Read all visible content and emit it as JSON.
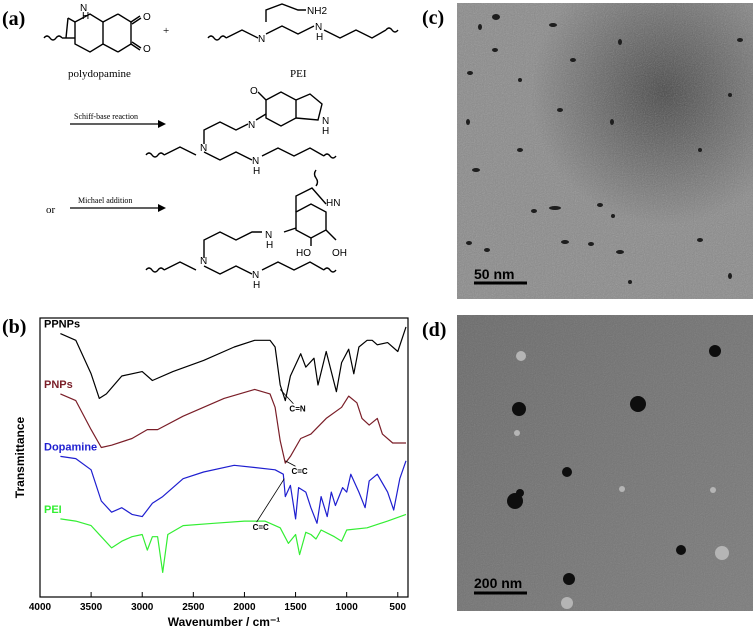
{
  "panels": {
    "a": "(a)",
    "b": "(b)",
    "c": "(c)",
    "d": "(d)"
  },
  "scheme": {
    "plus": "+",
    "polydopamine": "polydopamine",
    "pei": "PEI",
    "nh2": "NH2",
    "nh": "N\nH",
    "schiff": "Schiff-base reaction",
    "or": "or",
    "michael": "Michael addition",
    "ho": "HO",
    "oh": "OH",
    "hn": "HN"
  },
  "micrographs": {
    "c_scale": "50 nm",
    "d_scale": "200 nm"
  },
  "chart_data": {
    "type": "line",
    "xlabel": "Wavenumber / cm⁻¹",
    "ylabel": "Transmittance",
    "xlim": [
      4000,
      400
    ],
    "x_ticks": [
      4000,
      3500,
      3000,
      2500,
      2000,
      1500,
      1000,
      500
    ],
    "grid": false,
    "series": [
      {
        "name": "PPNPs",
        "color": "#000000",
        "points": [
          [
            3800,
            0.93
          ],
          [
            3650,
            0.9
          ],
          [
            3500,
            0.75
          ],
          [
            3420,
            0.64
          ],
          [
            3350,
            0.66
          ],
          [
            3200,
            0.74
          ],
          [
            3000,
            0.76
          ],
          [
            2900,
            0.72
          ],
          [
            2700,
            0.76
          ],
          [
            2400,
            0.81
          ],
          [
            2100,
            0.87
          ],
          [
            1900,
            0.9
          ],
          [
            1750,
            0.9
          ],
          [
            1700,
            0.87
          ],
          [
            1650,
            0.7
          ],
          [
            1600,
            0.63
          ],
          [
            1550,
            0.74
          ],
          [
            1450,
            0.84
          ],
          [
            1400,
            0.78
          ],
          [
            1320,
            0.82
          ],
          [
            1280,
            0.7
          ],
          [
            1200,
            0.85
          ],
          [
            1100,
            0.67
          ],
          [
            1050,
            0.8
          ],
          [
            980,
            0.86
          ],
          [
            930,
            0.75
          ],
          [
            880,
            0.87
          ],
          [
            800,
            0.9
          ],
          [
            750,
            0.9
          ],
          [
            700,
            0.88
          ],
          [
            600,
            0.89
          ],
          [
            500,
            0.85
          ],
          [
            420,
            0.96
          ]
        ]
      },
      {
        "name": "PNPs",
        "color": "#7a1e28",
        "points": [
          [
            3800,
            0.66
          ],
          [
            3650,
            0.63
          ],
          [
            3500,
            0.5
          ],
          [
            3400,
            0.42
          ],
          [
            3300,
            0.43
          ],
          [
            3100,
            0.46
          ],
          [
            2950,
            0.5
          ],
          [
            2850,
            0.5
          ],
          [
            2600,
            0.56
          ],
          [
            2200,
            0.64
          ],
          [
            1900,
            0.68
          ],
          [
            1750,
            0.66
          ],
          [
            1700,
            0.6
          ],
          [
            1650,
            0.45
          ],
          [
            1600,
            0.35
          ],
          [
            1550,
            0.38
          ],
          [
            1450,
            0.46
          ],
          [
            1350,
            0.48
          ],
          [
            1200,
            0.55
          ],
          [
            1050,
            0.6
          ],
          [
            980,
            0.65
          ],
          [
            900,
            0.62
          ],
          [
            850,
            0.55
          ],
          [
            780,
            0.52
          ],
          [
            700,
            0.55
          ],
          [
            650,
            0.48
          ],
          [
            550,
            0.44
          ],
          [
            420,
            0.44
          ]
        ]
      },
      {
        "name": "Dopamine",
        "color": "#1f1fd0",
        "points": [
          [
            3800,
            0.38
          ],
          [
            3650,
            0.37
          ],
          [
            3500,
            0.32
          ],
          [
            3400,
            0.18
          ],
          [
            3300,
            0.13
          ],
          [
            3200,
            0.15
          ],
          [
            3100,
            0.12
          ],
          [
            3000,
            0.11
          ],
          [
            2900,
            0.17
          ],
          [
            2800,
            0.2
          ],
          [
            2600,
            0.28
          ],
          [
            2400,
            0.31
          ],
          [
            2100,
            0.34
          ],
          [
            1900,
            0.33
          ],
          [
            1700,
            0.32
          ],
          [
            1620,
            0.3
          ],
          [
            1600,
            0.2
          ],
          [
            1550,
            0.25
          ],
          [
            1500,
            0.1
          ],
          [
            1470,
            0.24
          ],
          [
            1400,
            0.22
          ],
          [
            1350,
            0.15
          ],
          [
            1290,
            0.08
          ],
          [
            1250,
            0.2
          ],
          [
            1190,
            0.11
          ],
          [
            1150,
            0.22
          ],
          [
            1110,
            0.16
          ],
          [
            1040,
            0.24
          ],
          [
            1000,
            0.22
          ],
          [
            960,
            0.3
          ],
          [
            880,
            0.22
          ],
          [
            820,
            0.15
          ],
          [
            780,
            0.27
          ],
          [
            700,
            0.3
          ],
          [
            600,
            0.22
          ],
          [
            540,
            0.14
          ],
          [
            480,
            0.28
          ],
          [
            420,
            0.36
          ]
        ]
      },
      {
        "name": "PEI",
        "color": "#33ee33",
        "points": [
          [
            3800,
            0.1
          ],
          [
            3650,
            0.09
          ],
          [
            3500,
            0.07
          ],
          [
            3400,
            0.02
          ],
          [
            3300,
            -0.03
          ],
          [
            3200,
            0.0
          ],
          [
            3100,
            0.02
          ],
          [
            3000,
            0.03
          ],
          [
            2950,
            -0.04
          ],
          [
            2900,
            0.02
          ],
          [
            2850,
            0.02
          ],
          [
            2800,
            -0.14
          ],
          [
            2750,
            0.03
          ],
          [
            2600,
            0.07
          ],
          [
            2300,
            0.08
          ],
          [
            2000,
            0.09
          ],
          [
            1800,
            0.09
          ],
          [
            1650,
            0.06
          ],
          [
            1570,
            -0.01
          ],
          [
            1500,
            0.03
          ],
          [
            1460,
            -0.06
          ],
          [
            1400,
            0.04
          ],
          [
            1350,
            0.03
          ],
          [
            1300,
            0.01
          ],
          [
            1250,
            0.05
          ],
          [
            1120,
            0.02
          ],
          [
            1050,
            0.0
          ],
          [
            1000,
            0.05
          ],
          [
            800,
            0.06
          ],
          [
            600,
            0.09
          ],
          [
            420,
            0.12
          ]
        ]
      }
    ],
    "annotations": [
      "C=N",
      "C=C",
      "C=C"
    ]
  }
}
